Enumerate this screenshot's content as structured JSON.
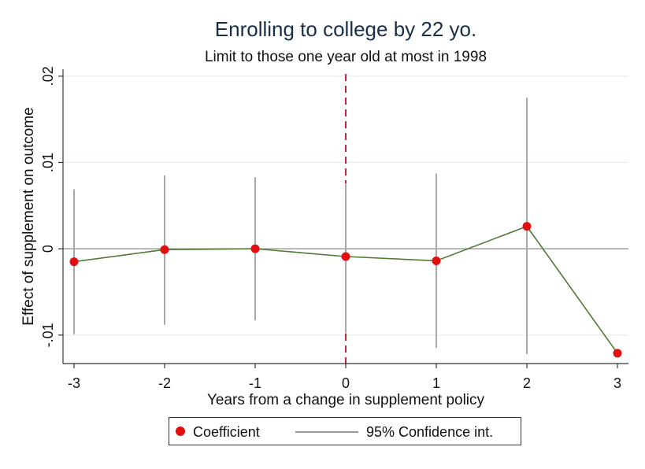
{
  "chart_data": {
    "type": "scatter",
    "title": "Enrolling to college by 22 yo.",
    "subtitle": "Limit to those one year old at most in 1998",
    "xlabel": "Years from a change in supplement policy",
    "ylabel": "Effect of supplement on outcome",
    "x": [
      -3,
      -2,
      -1,
      0,
      1,
      2,
      3
    ],
    "xlim": [
      -3,
      3
    ],
    "ylim": [
      -0.0133,
      0.0208
    ],
    "yticks": [
      -0.01,
      0,
      0.01,
      0.02
    ],
    "ytick_labels": [
      "-.01",
      "0",
      ".01",
      ".02"
    ],
    "xtick_labels": [
      "-3",
      "-2",
      "-1",
      "0",
      "1",
      "2",
      "3"
    ],
    "series": [
      {
        "name": "Coefficient",
        "values": [
          -0.0015,
          -0.0001,
          0.0,
          -0.0009,
          -0.0014,
          0.0026,
          -0.0121
        ]
      },
      {
        "name": "95% Confidence int.",
        "lower": [
          -0.0099,
          -0.0088,
          -0.0083,
          -0.0098,
          -0.0115,
          -0.0122,
          null
        ],
        "upper": [
          0.0069,
          0.0085,
          0.0083,
          0.0076,
          0.0087,
          0.0175,
          null
        ]
      }
    ],
    "reference_lines": {
      "vertical_x": 0,
      "horizontal_y": 0
    },
    "grid": true,
    "legend_position": "bottom",
    "colors": {
      "point": "#e01010",
      "line": "#4f7a35",
      "ci": "#a8a8a8",
      "vline": "#d41c3c",
      "grid": "#e4ecec",
      "zero": "#a0a0a0"
    }
  },
  "legend": {
    "item1": "Coefficient",
    "item2": "95% Confidence int."
  }
}
